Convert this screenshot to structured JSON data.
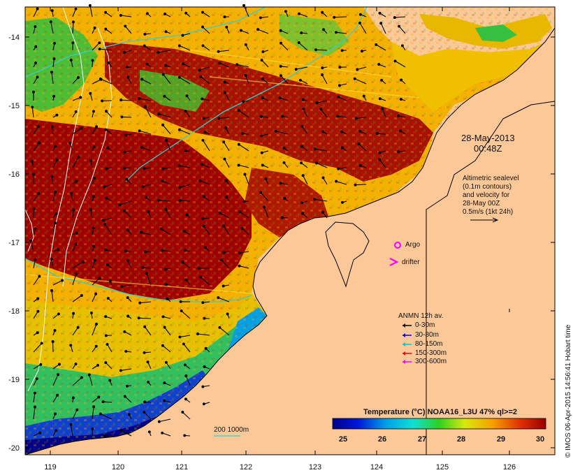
{
  "map": {
    "lat_ticks": [
      "-14",
      "-15",
      "-16",
      "-17",
      "-18",
      "-19",
      "-20"
    ],
    "lon_ticks": [
      "119",
      "120",
      "121",
      "122",
      "123",
      "124",
      "125",
      "126"
    ],
    "land_color": "#fcc898",
    "frame_color": "#000000"
  },
  "annotations": {
    "date": "28-May-2013",
    "time": "00:48Z",
    "altimetry_lines": [
      "Altimetric sealevel",
      "(0.1m contours)",
      "and velocity for",
      "28-May 00Z",
      "0.5m/s (1kt 24h)"
    ],
    "argo_label": "Argo",
    "drifter_label": "drifter",
    "isobath_label": "200  1000m"
  },
  "anmn_legend": {
    "title": "ANMN 12h av.",
    "items": [
      {
        "label": "0-30m",
        "color": "#000000"
      },
      {
        "label": "30-80m",
        "color": "#0000ff"
      },
      {
        "label": "80-150m",
        "color": "#00cccc"
      },
      {
        "label": "150-300m",
        "color": "#ff0000"
      },
      {
        "label": "300-600m",
        "color": "#ff00ff"
      }
    ]
  },
  "colorbar": {
    "title": "Temperature (°C) NOAA16_L3U 47% ql>=2",
    "ticks": [
      "25",
      "26",
      "27",
      "28",
      "29",
      "30"
    ],
    "min": 24.8,
    "max": 30.2
  },
  "credit": "© IMOS 06-Apr-2015 14:56:41 Hobart time"
}
